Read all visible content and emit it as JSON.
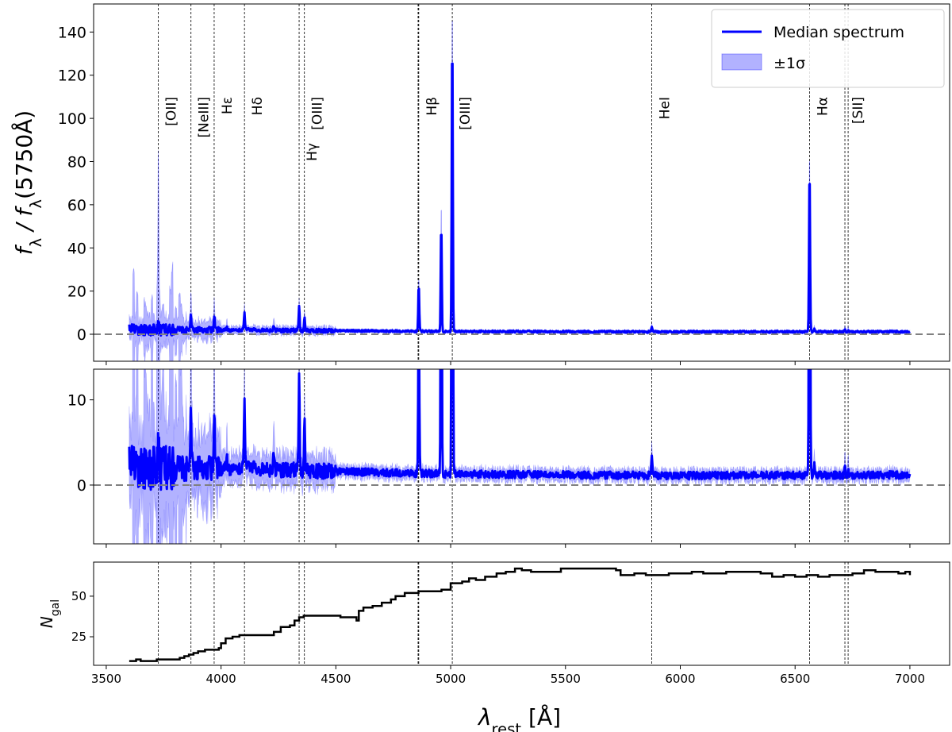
{
  "chart_data": {
    "type": "line",
    "xlabel": "λ_{rest} [Å]",
    "xlim": [
      3445,
      7173
    ],
    "xticks": [
      3500,
      4000,
      4500,
      5000,
      5500,
      6000,
      6500,
      7000
    ],
    "colors": {
      "median": "#0000ff",
      "band": "#0000ff",
      "ngal": "#000000",
      "zero_line": "#808080",
      "marker_lines": "#000000"
    },
    "legend": {
      "placement": "top-right",
      "entries": [
        {
          "label": "Median spectrum",
          "kind": "line"
        },
        {
          "label": "±1σ",
          "kind": "band"
        }
      ]
    },
    "emission_lines": [
      {
        "label": "[OII]",
        "wavelength": 3727
      },
      {
        "label": "[NeIII]",
        "wavelength": 3869
      },
      {
        "label": "Hε",
        "wavelength": 3970
      },
      {
        "label": "Hδ",
        "wavelength": 4102
      },
      {
        "label": "Hγ",
        "wavelength": 4340
      },
      {
        "label": "[OIII]",
        "wavelength": 4363
      },
      {
        "label": "Hβ",
        "wavelength": 4861
      },
      {
        "label": "[OIII]",
        "wavelength": 5007
      },
      {
        "label": "HeI",
        "wavelength": 5876
      },
      {
        "label": "Hα",
        "wavelength": 6563
      },
      {
        "label": "[SII]",
        "wavelength": 6717
      },
      {
        "label": "",
        "wavelength": 6731
      },
      {
        "label": "",
        "wavelength": 4858
      }
    ],
    "spectrum": {
      "x_range": [
        3600,
        7000
      ],
      "continuum": [
        [
          3600,
          2.0
        ],
        [
          4000,
          2.0
        ],
        [
          4500,
          1.6
        ],
        [
          5000,
          1.3
        ],
        [
          6000,
          1.1
        ],
        [
          7000,
          1.2
        ]
      ],
      "line_peaks": [
        {
          "wavelength": 3727,
          "median": 5,
          "upper": 72
        },
        {
          "wavelength": 3869,
          "median": 9,
          "upper": 17
        },
        {
          "wavelength": 3970,
          "median": 8.5,
          "upper": 12
        },
        {
          "wavelength": 4026,
          "median": 3,
          "upper": 5
        },
        {
          "wavelength": 4102,
          "median": 9.5,
          "upper": 12
        },
        {
          "wavelength": 4230,
          "median": 4,
          "upper": 6
        },
        {
          "wavelength": 4340,
          "median": 13,
          "upper": 15
        },
        {
          "wavelength": 4363,
          "median": 7.5,
          "upper": 9
        },
        {
          "wavelength": 4861,
          "median": 23,
          "upper": 27
        },
        {
          "wavelength": 4959,
          "median": 51,
          "upper": 63
        },
        {
          "wavelength": 5007,
          "median": 139,
          "upper": 160
        },
        {
          "wavelength": 5876,
          "median": 3.5,
          "upper": 4.5
        },
        {
          "wavelength": 6563,
          "median": 77,
          "upper": 88
        },
        {
          "wavelength": 6584,
          "median": 2.5,
          "upper": 3.5
        },
        {
          "wavelength": 6717,
          "median": 2,
          "upper": 3
        },
        {
          "wavelength": 6731,
          "median": 2,
          "upper": 3
        }
      ]
    },
    "panels": [
      {
        "name": "full-spectrum",
        "ylabel": "f_{λ} / f_{λ}(5750Å)",
        "ylim": [
          -12.5,
          153
        ],
        "yticks": [
          0,
          20,
          40,
          60,
          80,
          100,
          120,
          140
        ],
        "zero_line": true
      },
      {
        "name": "zoomed-spectrum",
        "ylabel": "",
        "ylim": [
          -6.9,
          13.6
        ],
        "yticks": [
          0,
          10
        ],
        "zero_line": true
      },
      {
        "name": "galaxy-count",
        "ylabel": "N_{gal}",
        "ylim": [
          7.4,
          71
        ],
        "yticks": [
          25,
          50
        ],
        "zero_line": false
      }
    ],
    "ngal": {
      "x": [
        3600,
        3630,
        3650,
        3670,
        3720,
        3800,
        3820,
        3840,
        3860,
        3880,
        3900,
        3930,
        3960,
        3990,
        4000,
        4020,
        4050,
        4080,
        4130,
        4180,
        4200,
        4230,
        4260,
        4300,
        4320,
        4340,
        4360,
        4500,
        4520,
        4560,
        4590,
        4600,
        4620,
        4660,
        4700,
        4740,
        4760,
        4800,
        4860,
        4930,
        4960,
        5000,
        5050,
        5080,
        5110,
        5150,
        5200,
        5240,
        5280,
        5310,
        5350,
        5400,
        5450,
        5480,
        5500,
        5600,
        5680,
        5720,
        5740,
        5800,
        5850,
        5900,
        5950,
        6000,
        6050,
        6100,
        6150,
        6200,
        6250,
        6300,
        6350,
        6400,
        6450,
        6500,
        6550,
        6600,
        6650,
        6700,
        6750,
        6800,
        6850,
        6900,
        6950,
        6980,
        7000
      ],
      "y": [
        10,
        11,
        10,
        10,
        11,
        11,
        12,
        13,
        14,
        15,
        16,
        17,
        17,
        18,
        21,
        24,
        25,
        26,
        26,
        26,
        26,
        28,
        31,
        32,
        35,
        37,
        38,
        38,
        37,
        37,
        35,
        41,
        43,
        44,
        46,
        48,
        50,
        52,
        53,
        53,
        54,
        58,
        59,
        61,
        60,
        62,
        64,
        65,
        67,
        66,
        65,
        65,
        65,
        67,
        67,
        67,
        67,
        66,
        63,
        64,
        63,
        63,
        64,
        64,
        65,
        64,
        64,
        65,
        65,
        65,
        64,
        62,
        63,
        62,
        63,
        62,
        63,
        63,
        64,
        66,
        65,
        65,
        64,
        65,
        63
      ]
    }
  }
}
